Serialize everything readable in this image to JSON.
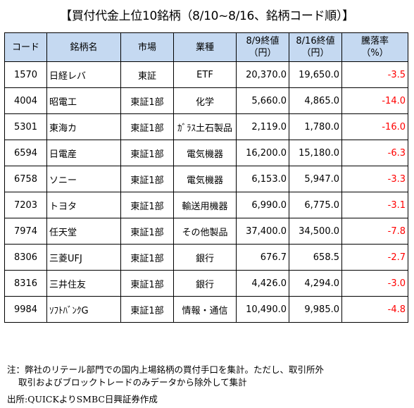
{
  "title": "【買付代金上位10銘柄（8/10~8/16、銘柄コード順）】",
  "headers": {
    "code": "コード",
    "name": "銘柄名",
    "market": "市場",
    "sector": "業種",
    "close_0809_line1": "8/9終値",
    "close_0809_line2": "（円）",
    "close_0816_line1": "8/16終値",
    "close_0816_line2": "（円）",
    "change_line1": "騰落率",
    "change_line2": "（%）"
  },
  "rows": [
    {
      "code": "1570",
      "name": "日経レバ",
      "market": "東証",
      "sector": "ETF",
      "close_0809": "20,370.0",
      "close_0816": "19,650.0",
      "change": "-3.5"
    },
    {
      "code": "4004",
      "name": "昭電工",
      "market": "東証1部",
      "sector": "化学",
      "close_0809": "5,660.0",
      "close_0816": "4,865.0",
      "change": "-14.0"
    },
    {
      "code": "5301",
      "name": "東海カ",
      "market": "東証1部",
      "sector": "ｶﾞﾗｽ土石製品",
      "close_0809": "2,119.0",
      "close_0816": "1,780.0",
      "change": "-16.0"
    },
    {
      "code": "6594",
      "name": "日電産",
      "market": "東証1部",
      "sector": "電気機器",
      "close_0809": "16,200.0",
      "close_0816": "15,180.0",
      "change": "-6.3"
    },
    {
      "code": "6758",
      "name": "ソニー",
      "market": "東証1部",
      "sector": "電気機器",
      "close_0809": "6,153.0",
      "close_0816": "5,947.0",
      "change": "-3.3"
    },
    {
      "code": "7203",
      "name": "トヨタ",
      "market": "東証1部",
      "sector": "輸送用機器",
      "close_0809": "6,990.0",
      "close_0816": "6,775.0",
      "change": "-3.1"
    },
    {
      "code": "7974",
      "name": "任天堂",
      "market": "東証1部",
      "sector": "その他製品",
      "close_0809": "37,400.0",
      "close_0816": "34,500.0",
      "change": "-7.8"
    },
    {
      "code": "8306",
      "name": "三菱UFJ",
      "market": "東証1部",
      "sector": "銀行",
      "close_0809": "676.7",
      "close_0816": "658.5",
      "change": "-2.7"
    },
    {
      "code": "8316",
      "name": "三井住友",
      "market": "東証1部",
      "sector": "銀行",
      "close_0809": "4,426.0",
      "close_0816": "4,294.0",
      "change": "-3.0"
    },
    {
      "code": "9984",
      "name": "ｿﾌﾄﾊﾞﾝｸG",
      "market": "東証1部",
      "sector": "情報・通信",
      "close_0809": "10,490.0",
      "close_0816": "9,985.0",
      "change": "-4.8"
    }
  ],
  "note_line1": "注：弊社のリテール部門での国内上場銘柄の買付手口を集計。ただし、取引所外",
  "note_line2": "取引およびブロックトレードのみデータから除外して集計",
  "source": "出所:QUICKよりSMBC日興証券作成",
  "colors": {
    "header_bg": "#c5d9f1",
    "negative": "#ff0000"
  }
}
